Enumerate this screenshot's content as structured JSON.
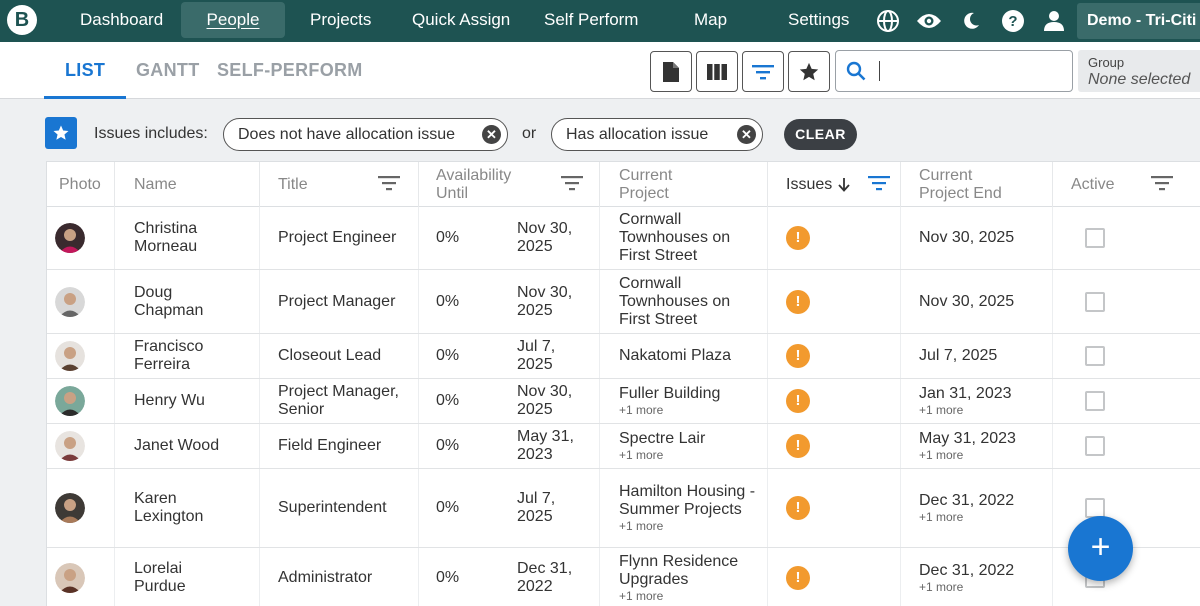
{
  "nav": {
    "logo": "B",
    "items": [
      "Dashboard",
      "People",
      "Projects",
      "Quick Assign",
      "Self Perform",
      "Map",
      "Settings"
    ],
    "active": "People",
    "account": "Demo - Tri-Citi"
  },
  "tabs": [
    "LIST",
    "GANTT",
    "SELF-PERFORM"
  ],
  "search": {
    "placeholder": ""
  },
  "group": {
    "label": "Group",
    "value": "None selected"
  },
  "filter": {
    "label": "Issues includes:",
    "chips": [
      "Does not have allocation issue",
      "Has allocation issue"
    ],
    "or": "or",
    "clear": "CLEAR"
  },
  "table": {
    "headers": {
      "photo": "Photo",
      "name": "Name",
      "title": "Title",
      "availability": "Availability Until",
      "project": "Current Project",
      "issues": "Issues",
      "project_end": "Current Project End",
      "active": "Active"
    },
    "rows": [
      {
        "name": "Christina Morneau",
        "title": "Project Engineer",
        "pct": "0%",
        "until": "Nov 30, 2025",
        "project": "Cornwall Townhouses on First Street",
        "project_more": "",
        "end": "Nov 30, 2025",
        "end_more": "",
        "avatar_bg": "#3a2a2e",
        "avatar_accent": "#c2185b"
      },
      {
        "name": "Doug Chapman",
        "title": "Project Manager",
        "pct": "0%",
        "until": "Nov 30, 2025",
        "project": "Cornwall Townhouses on First Street",
        "project_more": "",
        "end": "Nov 30, 2025",
        "end_more": "",
        "avatar_bg": "#d8d8d8",
        "avatar_accent": "#666666"
      },
      {
        "name": "Francisco Ferreira",
        "title": "Closeout Lead",
        "pct": "0%",
        "until": "Jul 7, 2025",
        "project": "Nakatomi Plaza",
        "project_more": "",
        "end": "Jul 7, 2025",
        "end_more": "",
        "avatar_bg": "#e6e2de",
        "avatar_accent": "#5a4030"
      },
      {
        "name": "Henry Wu",
        "title": "Project Manager, Senior",
        "pct": "0%",
        "until": "Nov 30, 2025",
        "project": "Fuller Building",
        "project_more": "+1 more",
        "end": "Jan 31, 2023",
        "end_more": "+1 more",
        "avatar_bg": "#7aa89a",
        "avatar_accent": "#2b2b2b"
      },
      {
        "name": "Janet Wood",
        "title": "Field Engineer",
        "pct": "0%",
        "until": "May 31, 2023",
        "project": "Spectre Lair",
        "project_more": "+1 more",
        "end": "May 31, 2023",
        "end_more": "+1 more",
        "avatar_bg": "#e8e4e0",
        "avatar_accent": "#7a3b3b"
      },
      {
        "name": "Karen Lexington",
        "title": "Superintendent",
        "pct": "0%",
        "until": "Jul 7, 2025",
        "project": "Hamilton Housing - Summer Projects",
        "project_more": "+1 more",
        "end": "Dec 31, 2022",
        "end_more": "+1 more",
        "avatar_bg": "#3e3a36",
        "avatar_accent": "#a87a5a"
      },
      {
        "name": "Lorelai Purdue",
        "title": "Administrator",
        "pct": "0%",
        "until": "Dec 31, 2022",
        "project": "Flynn Residence Upgrades",
        "project_more": "+1 more",
        "end": "Dec 31, 2022",
        "end_more": "+1 more",
        "avatar_bg": "#d9c7b8",
        "avatar_accent": "#5a3226"
      }
    ]
  },
  "issue_glyph": "!",
  "fab_label": "+"
}
